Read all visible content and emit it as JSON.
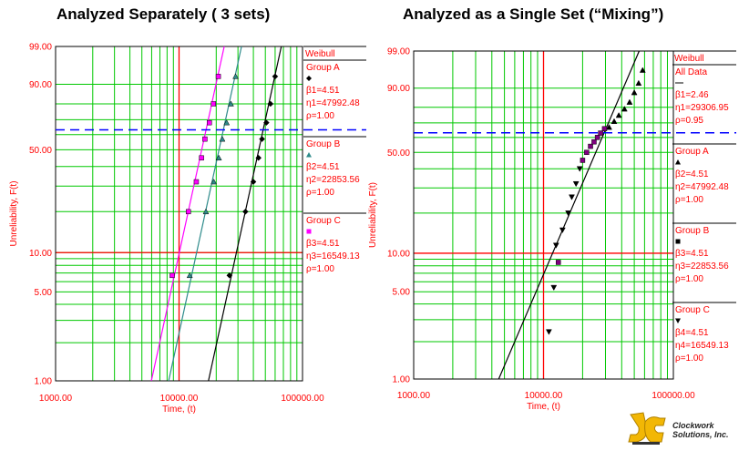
{
  "titles": {
    "left": "Analyzed Separately ( 3 sets)",
    "right": "Analyzed as a Single Set (“Mixing”)"
  },
  "colors": {
    "grid": "#00c800",
    "red": "#ff0000",
    "blue_dashed": "#0000ff",
    "magenta": "#ff00ff",
    "teal": "#2e8b8b",
    "black": "#000000",
    "legend_text": "#ff0000"
  },
  "logo": {
    "name": "clockwork-logo",
    "line1": "Clockwork",
    "line2": "Solutions, Inc."
  },
  "chart_data": [
    {
      "type": "scatter",
      "subtype": "weibull-probability-plot",
      "title": "Analyzed Separately ( 3 sets)",
      "xlabel": "Time, (t)",
      "ylabel": "Unreliability, F(t)",
      "x_scale": "log",
      "y_scale": "weibull",
      "xlim": [
        1000,
        100000
      ],
      "ylim": [
        1,
        99
      ],
      "x_ticks": [
        "1000.00",
        "10000.00",
        "100000.00"
      ],
      "y_ticks": [
        "1.00",
        "5.00",
        "10.00",
        "50.00",
        "90.00",
        "99.00"
      ],
      "reference_lines": {
        "x_red": 10000,
        "y_red": 10,
        "y_blue_dashed": 63.2
      },
      "legend": {
        "header": "Weibull",
        "groups": [
          {
            "name": "Group A",
            "marker": "diamond",
            "color": "#000000",
            "lines": [
              "β1=4.51",
              "η1=47992.48",
              "ρ=1.00"
            ]
          },
          {
            "name": "Group B",
            "marker": "triangle",
            "color": "#2e8b8b",
            "lines": [
              "β2=4.51",
              "η2=22853.56",
              "ρ=1.00"
            ]
          },
          {
            "name": "Group C",
            "marker": "square",
            "color": "#ff00ff",
            "lines": [
              "β3=4.51",
              "η3=16549.13",
              "ρ=1.00"
            ]
          }
        ]
      },
      "series": [
        {
          "name": "Group A",
          "marker": "diamond",
          "color": "#000000",
          "beta": 4.51,
          "eta": 47992.48,
          "points": [
            [
              25600,
              6.7
            ],
            [
              34500,
              20
            ],
            [
              40000,
              32
            ],
            [
              44000,
              45
            ],
            [
              47000,
              57
            ],
            [
              51000,
              68
            ],
            [
              55000,
              80
            ],
            [
              60000,
              93
            ]
          ]
        },
        {
          "name": "Group B",
          "marker": "triangle",
          "color": "#2e8b8b",
          "beta": 4.51,
          "eta": 22853.56,
          "points": [
            [
              12200,
              6.7
            ],
            [
              16500,
              20
            ],
            [
              19100,
              32
            ],
            [
              21000,
              45
            ],
            [
              22400,
              57
            ],
            [
              24300,
              68
            ],
            [
              26300,
              80
            ],
            [
              28700,
              93
            ]
          ]
        },
        {
          "name": "Group C",
          "marker": "square",
          "color": "#ff00ff",
          "beta": 4.51,
          "eta": 16549.13,
          "points": [
            [
              8800,
              6.7
            ],
            [
              11900,
              20
            ],
            [
              13800,
              32
            ],
            [
              15200,
              45
            ],
            [
              16200,
              57
            ],
            [
              17600,
              68
            ],
            [
              19000,
              80
            ],
            [
              20800,
              93
            ]
          ]
        }
      ]
    },
    {
      "type": "scatter",
      "subtype": "weibull-probability-plot",
      "title": "Analyzed as a Single Set (“Mixing”)",
      "xlabel": "Time, (t)",
      "ylabel": "Unreliability, F(t)",
      "x_scale": "log",
      "y_scale": "weibull",
      "xlim": [
        1000,
        100000
      ],
      "ylim": [
        1,
        99
      ],
      "x_ticks": [
        "1000.00",
        "10000.00",
        "100000.00"
      ],
      "y_ticks": [
        "1.00",
        "5.00",
        "10.00",
        "50.00",
        "90.00",
        "99.00"
      ],
      "reference_lines": {
        "x_red": 10000,
        "y_red": 10,
        "y_blue_dashed": 63.2
      },
      "legend": {
        "header": "Weibull",
        "groups": [
          {
            "name": "All Data",
            "marker": "line",
            "color": "#000000",
            "lines": [
              "β1=2.46",
              "η1=29306.95",
              "ρ=0.95"
            ]
          },
          {
            "name": "Group A",
            "marker": "triangle",
            "color": "#000000",
            "lines": [
              "β2=4.51",
              "η2=47992.48",
              "ρ=1.00"
            ]
          },
          {
            "name": "Group B",
            "marker": "square",
            "color": "#000000",
            "lines": [
              "β3=4.51",
              "η3=22853.56",
              "ρ=1.00"
            ]
          },
          {
            "name": "Group C",
            "marker": "triangle-down",
            "color": "#000000",
            "lines": [
              "β4=4.51",
              "η4=16549.13",
              "ρ=1.00"
            ]
          }
        ]
      },
      "fit_line": {
        "name": "All Data",
        "beta": 2.46,
        "eta": 29306.95
      },
      "series": [
        {
          "name": "Group A",
          "marker": "triangle",
          "color": "#000000",
          "points": [
            [
              32000,
              67
            ],
            [
              35000,
              71
            ],
            [
              38000,
              75
            ],
            [
              42000,
              79
            ],
            [
              46000,
              83
            ],
            [
              50000,
              88
            ],
            [
              54000,
              92
            ],
            [
              58000,
              96
            ]
          ]
        },
        {
          "name": "Group B",
          "marker": "square",
          "color": "#800080",
          "points": [
            [
              13000,
              8.5
            ],
            [
              20000,
              45
            ],
            [
              21500,
              50
            ],
            [
              23000,
              54
            ],
            [
              24500,
              57
            ],
            [
              26000,
              60
            ],
            [
              27500,
              63
            ],
            [
              29500,
              66
            ]
          ]
        },
        {
          "name": "Group C",
          "marker": "triangle-down",
          "color": "#000000",
          "points": [
            [
              11000,
              2.4
            ],
            [
              12000,
              5.4
            ],
            [
              12500,
              11.5
            ],
            [
              14000,
              15
            ],
            [
              15500,
              20
            ],
            [
              16500,
              26
            ],
            [
              17800,
              32
            ],
            [
              19000,
              40
            ]
          ]
        }
      ]
    }
  ]
}
